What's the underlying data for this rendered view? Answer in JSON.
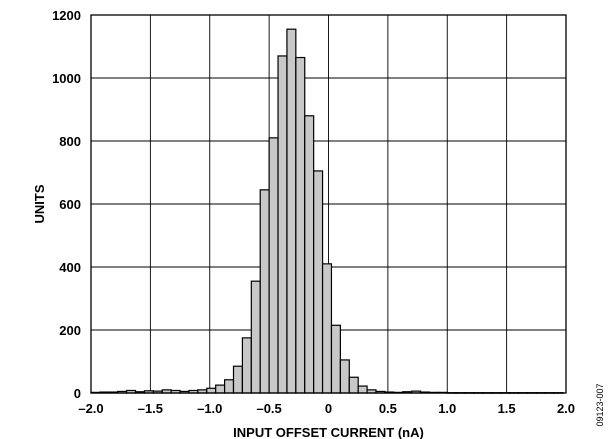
{
  "chart_data": {
    "type": "bar",
    "title": "",
    "xlabel": "INPUT OFFSET CURRENT (nA)",
    "ylabel": "UNITS",
    "xlim": [
      -2.0,
      2.0
    ],
    "ylim": [
      0,
      1200
    ],
    "grid": true,
    "bin_width": 0.075,
    "xticks": [
      -2.0,
      -1.5,
      -1.0,
      -0.5,
      0,
      0.5,
      1.0,
      1.5,
      2.0
    ],
    "xtick_labels": [
      "–2.0",
      "–1.5",
      "–1.0",
      "–0.5",
      "0",
      "0.5",
      "1.0",
      "1.5",
      "2.0"
    ],
    "yticks": [
      0,
      200,
      400,
      600,
      800,
      1000,
      1200
    ],
    "ytick_labels": [
      "0",
      "200",
      "400",
      "600",
      "800",
      "1000",
      "1200"
    ],
    "x": [
      -2.0,
      -1.925,
      -1.85,
      -1.775,
      -1.7,
      -1.625,
      -1.55,
      -1.475,
      -1.4,
      -1.325,
      -1.25,
      -1.175,
      -1.1,
      -1.025,
      -0.95,
      -0.875,
      -0.8,
      -0.725,
      -0.65,
      -0.575,
      -0.5,
      -0.425,
      -0.35,
      -0.275,
      -0.2,
      -0.125,
      -0.05,
      0.025,
      0.1,
      0.175,
      0.25,
      0.325,
      0.4,
      0.475,
      0.55,
      0.625,
      0.7,
      0.775,
      0.85,
      0.925,
      1.0,
      1.075,
      1.15,
      1.225,
      1.3,
      1.375,
      1.45,
      1.525,
      1.6,
      1.675,
      1.75,
      1.825,
      1.9
    ],
    "values": [
      2,
      3,
      3,
      5,
      8,
      4,
      7,
      6,
      10,
      8,
      5,
      8,
      10,
      15,
      25,
      42,
      85,
      175,
      355,
      645,
      810,
      1070,
      1155,
      1065,
      880,
      705,
      410,
      215,
      105,
      50,
      22,
      10,
      5,
      3,
      2,
      4,
      6,
      3,
      2,
      2,
      1,
      1,
      1,
      1,
      1,
      1,
      1,
      1,
      1,
      1,
      1,
      1,
      1
    ],
    "bar_color": "#c8c8c8",
    "edge_color": "#000000"
  },
  "figure_id": "09123-007"
}
